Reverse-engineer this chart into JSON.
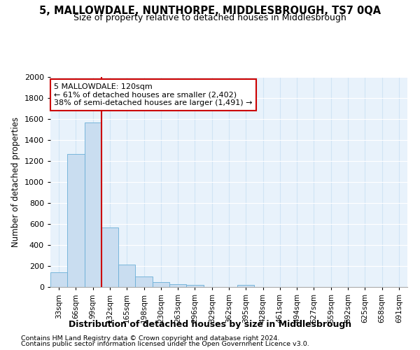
{
  "title": "5, MALLOWDALE, NUNTHORPE, MIDDLESBROUGH, TS7 0QA",
  "subtitle": "Size of property relative to detached houses in Middlesbrough",
  "xlabel": "Distribution of detached houses by size in Middlesbrough",
  "ylabel": "Number of detached properties",
  "footnote1": "Contains HM Land Registry data © Crown copyright and database right 2024.",
  "footnote2": "Contains public sector information licensed under the Open Government Licence v3.0.",
  "annotation_line1": "5 MALLOWDALE: 120sqm",
  "annotation_line2": "← 61% of detached houses are smaller (2,402)",
  "annotation_line3": "38% of semi-detached houses are larger (1,491) →",
  "bar_fill_color": "#c9ddf0",
  "bar_edge_color": "#6aaed6",
  "grid_color": "#d0e4f5",
  "background_color": "#e8f2fb",
  "red_line_color": "#cc0000",
  "categories": [
    "33sqm",
    "66sqm",
    "99sqm",
    "132sqm",
    "165sqm",
    "198sqm",
    "230sqm",
    "263sqm",
    "296sqm",
    "329sqm",
    "362sqm",
    "395sqm",
    "428sqm",
    "461sqm",
    "494sqm",
    "527sqm",
    "559sqm",
    "592sqm",
    "625sqm",
    "658sqm",
    "691sqm"
  ],
  "values": [
    140,
    1265,
    1565,
    570,
    215,
    100,
    50,
    28,
    20,
    0,
    0,
    20,
    0,
    0,
    0,
    0,
    0,
    0,
    0,
    0,
    0
  ],
  "ylim": [
    0,
    2000
  ],
  "yticks": [
    0,
    200,
    400,
    600,
    800,
    1000,
    1200,
    1400,
    1600,
    1800,
    2000
  ],
  "red_line_index": 3
}
